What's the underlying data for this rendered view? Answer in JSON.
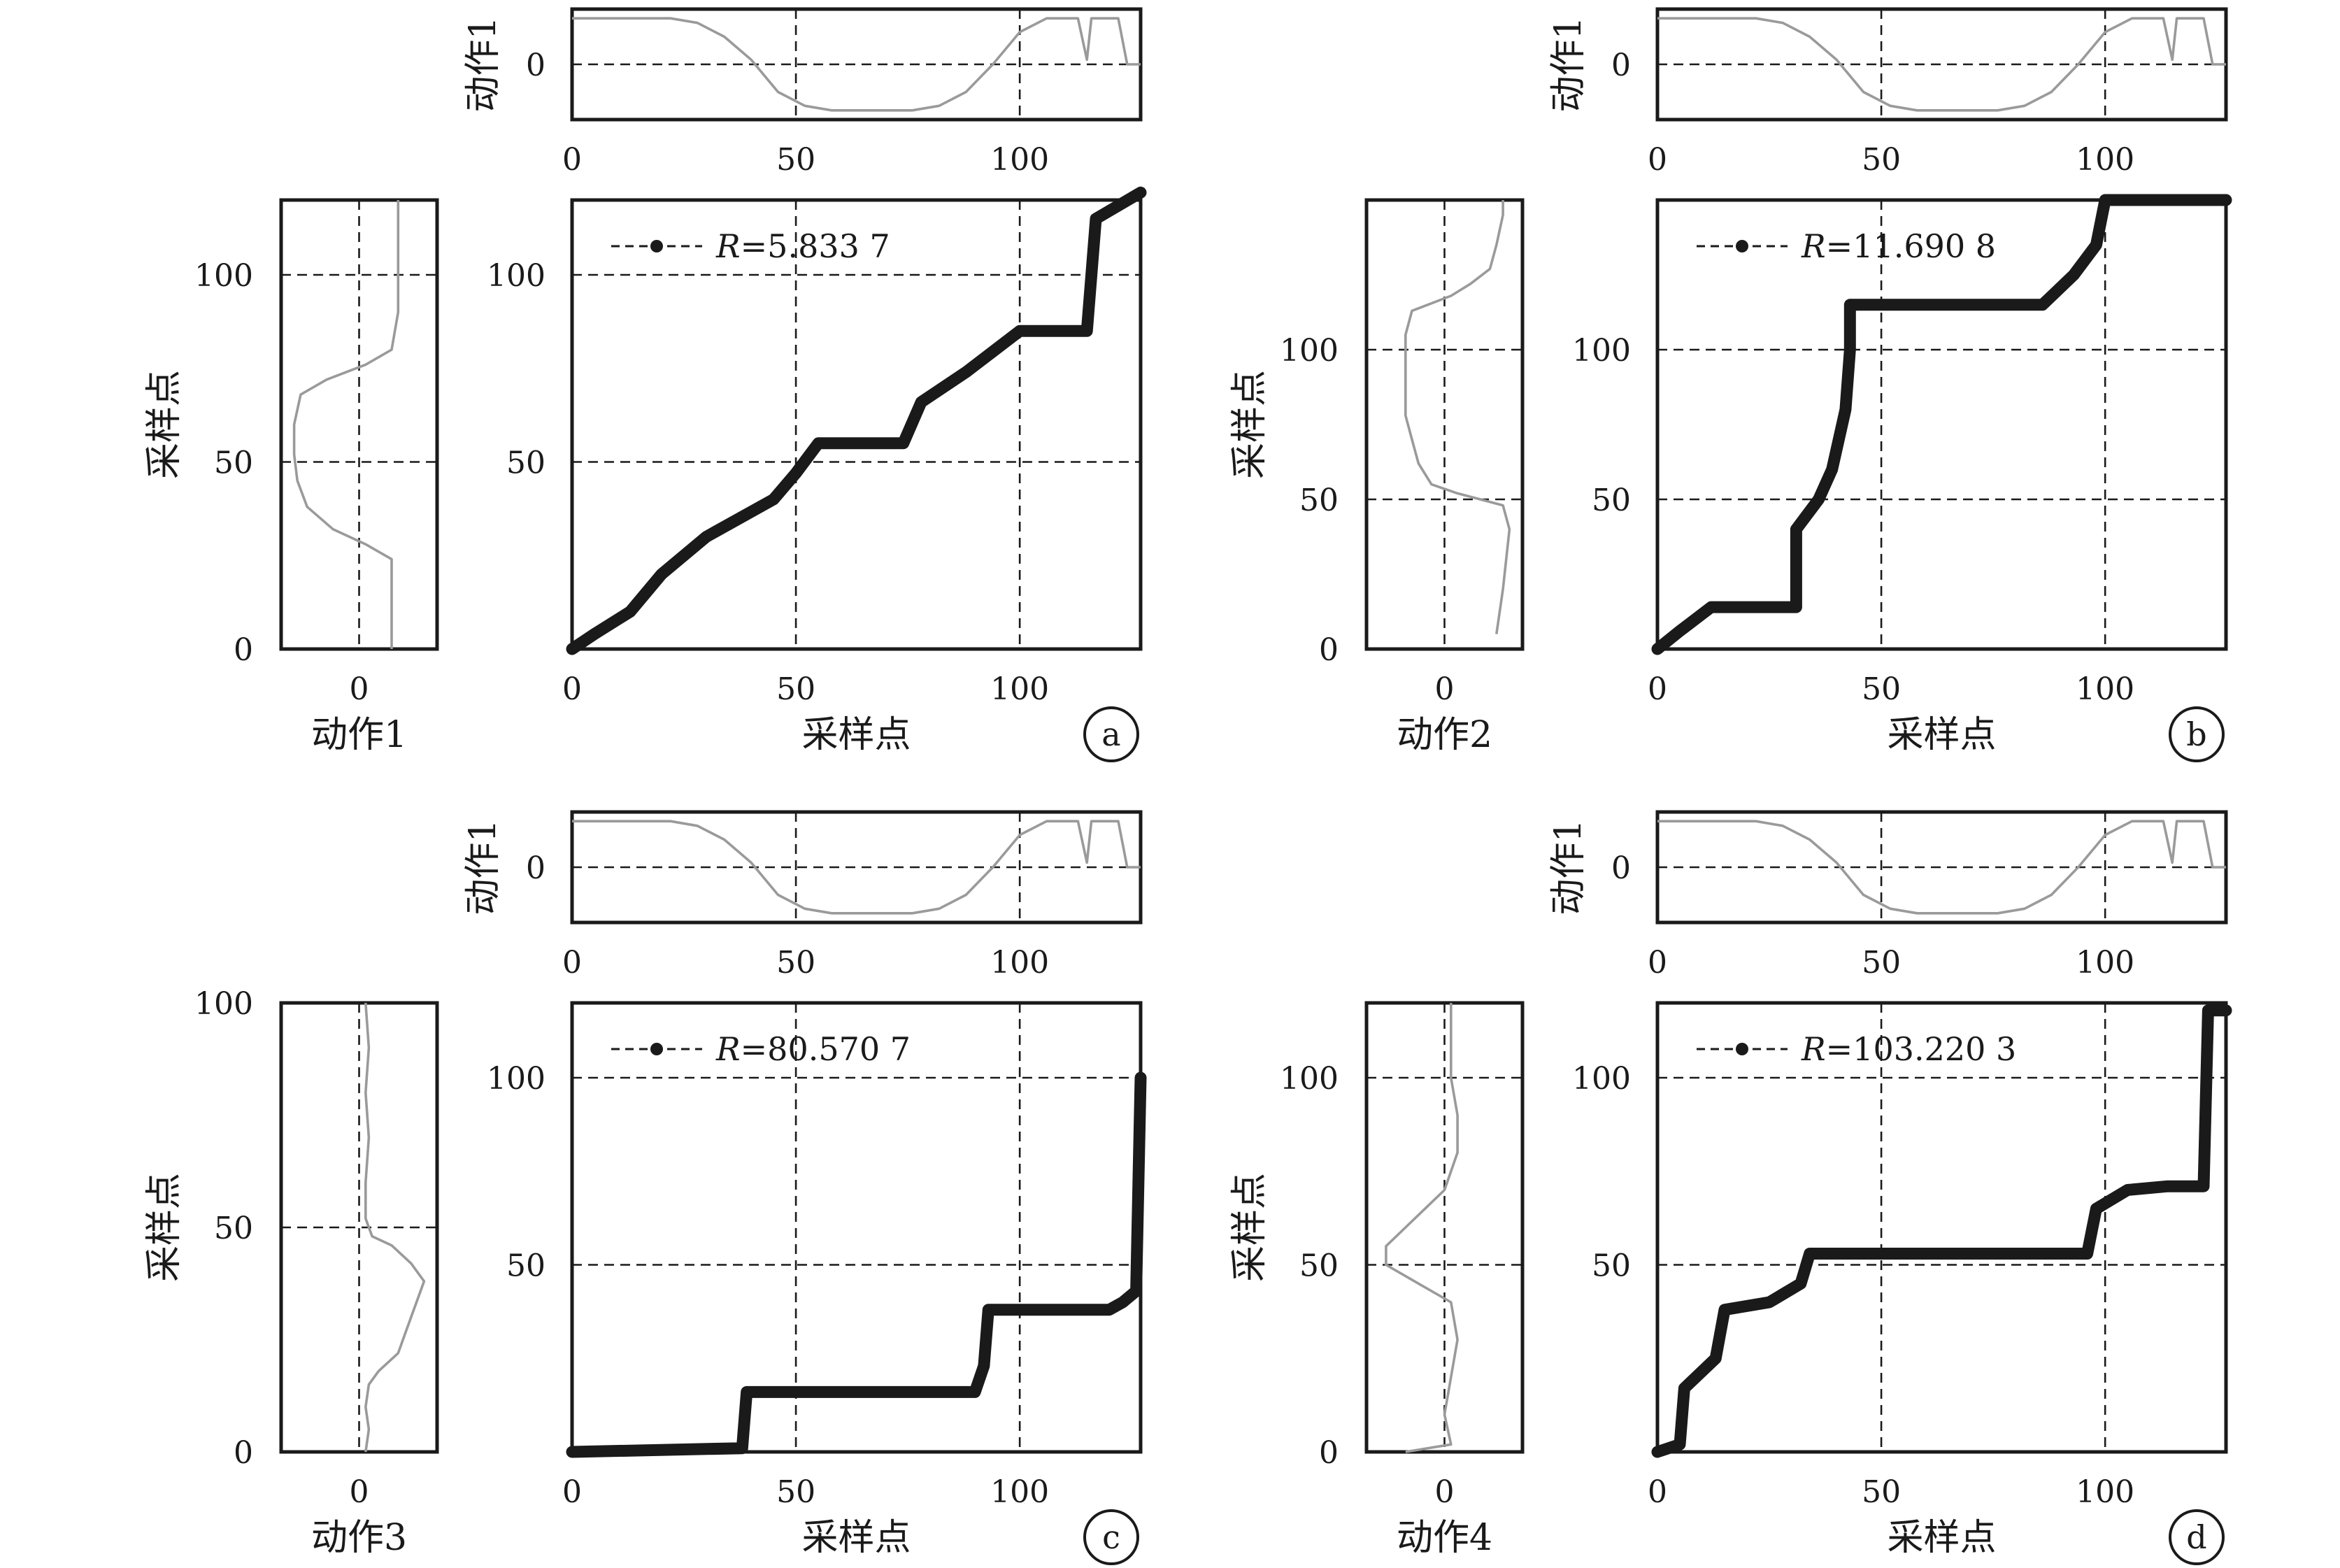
{
  "chart_data": [
    {
      "id": "a",
      "type": "line",
      "panel_label": "a",
      "xlabel": "采样点",
      "xlim": [
        0,
        127
      ],
      "ylim": [
        0,
        120
      ],
      "xticks": [
        0,
        50,
        100
      ],
      "yticks": [
        50,
        100
      ],
      "legend": "R=5.833 7",
      "legend_prefix": "R",
      "legend_value": "=5.833 7",
      "warping_path": {
        "x": [
          0,
          5,
          13,
          20,
          30,
          45,
          50,
          55,
          63,
          74,
          78,
          88,
          100,
          115,
          117,
          127
        ],
        "y": [
          0,
          4,
          10,
          20,
          30,
          40,
          47,
          55,
          55,
          55,
          66,
          74,
          85,
          85,
          115,
          122
        ]
      },
      "top_series": {
        "ylabel": "动作1",
        "xticks": [
          0,
          50,
          100
        ],
        "yticks": [
          0
        ],
        "xlim": [
          0,
          127
        ],
        "ylim": [
          -1.2,
          1.2
        ],
        "x": [
          0,
          22,
          28,
          34,
          40,
          46,
          52,
          58,
          64,
          70,
          76,
          82,
          88,
          94,
          100,
          106,
          113,
          115,
          116,
          122,
          124,
          127
        ],
        "y": [
          1,
          1,
          0.9,
          0.6,
          0.1,
          -0.6,
          -0.9,
          -1,
          -1,
          -1,
          -1,
          -0.9,
          -0.6,
          0.0,
          0.7,
          1,
          1,
          0.1,
          1,
          1,
          0,
          0
        ]
      },
      "left_series": {
        "xlabel": "动作1",
        "ylabel": "采样点",
        "xticks": [
          0
        ],
        "yticks": [
          0,
          50,
          100
        ],
        "xlim": [
          -1.2,
          1.2
        ],
        "ylim": [
          0,
          120
        ],
        "y": [
          0,
          24,
          28,
          32,
          38,
          45,
          52,
          60,
          68,
          72,
          76,
          80,
          90,
          100,
          120
        ],
        "x": [
          0.5,
          0.5,
          0.1,
          -0.4,
          -0.8,
          -0.95,
          -1.0,
          -1.0,
          -0.9,
          -0.5,
          0.1,
          0.5,
          0.6,
          0.6,
          0.6
        ]
      }
    },
    {
      "id": "b",
      "type": "line",
      "panel_label": "b",
      "xlabel": "采样点",
      "xlim": [
        0,
        127
      ],
      "ylim": [
        0,
        150
      ],
      "xticks": [
        0,
        50,
        100
      ],
      "yticks": [
        50,
        100
      ],
      "legend": "R=11.690 8",
      "legend_prefix": "R",
      "legend_value": "=11.690 8",
      "warping_path": {
        "x": [
          0,
          5,
          12,
          31,
          31,
          36,
          39,
          42,
          43,
          43,
          86,
          93,
          98,
          100,
          127
        ],
        "y": [
          0,
          6,
          14,
          14,
          40,
          50,
          60,
          80,
          100,
          115,
          115,
          125,
          135,
          150,
          150
        ]
      },
      "top_series": {
        "ylabel": "动作1",
        "xticks": [
          0,
          50,
          100
        ],
        "yticks": [
          0
        ],
        "xlim": [
          0,
          127
        ],
        "ylim": [
          -1.2,
          1.2
        ],
        "x": [
          0,
          22,
          28,
          34,
          40,
          46,
          52,
          58,
          64,
          70,
          76,
          82,
          88,
          94,
          100,
          106,
          113,
          115,
          116,
          122,
          124,
          127
        ],
        "y": [
          1,
          1,
          0.9,
          0.6,
          0.1,
          -0.6,
          -0.9,
          -1,
          -1,
          -1,
          -1,
          -0.9,
          -0.6,
          0.0,
          0.7,
          1,
          1,
          0.1,
          1,
          1,
          0,
          0
        ]
      },
      "left_series": {
        "xlabel": "动作2",
        "ylabel": "采样点",
        "xticks": [
          0
        ],
        "yticks": [
          0,
          50,
          100
        ],
        "xlim": [
          -1.2,
          1.2
        ],
        "ylim": [
          0,
          150
        ],
        "y": [
          5,
          20,
          40,
          48,
          52,
          55,
          62,
          70,
          78,
          86,
          95,
          105,
          113,
          118,
          122,
          127,
          135,
          145,
          150
        ],
        "x": [
          0.8,
          0.9,
          1.0,
          0.9,
          0.2,
          -0.2,
          -0.4,
          -0.5,
          -0.6,
          -0.6,
          -0.6,
          -0.6,
          -0.5,
          0.1,
          0.4,
          0.7,
          0.8,
          0.9,
          0.9
        ]
      }
    },
    {
      "id": "c",
      "type": "line",
      "panel_label": "c",
      "xlabel": "采样点",
      "xlim": [
        0,
        127
      ],
      "ylim": [
        0,
        120
      ],
      "xticks": [
        0,
        50,
        100
      ],
      "yticks": [
        50,
        100
      ],
      "legend": "R=80.570 7",
      "legend_prefix": "R",
      "legend_value": "=80.570 7",
      "warping_path": {
        "x": [
          0,
          38,
          39,
          90,
          92,
          93,
          120,
          123,
          126,
          127
        ],
        "y": [
          0,
          1,
          16,
          16,
          23,
          38,
          38,
          40,
          43,
          100
        ]
      },
      "top_series": {
        "ylabel": "动作1",
        "xticks": [
          0,
          50,
          100
        ],
        "yticks": [
          0
        ],
        "xlim": [
          0,
          127
        ],
        "ylim": [
          -1.2,
          1.2
        ],
        "x": [
          0,
          22,
          28,
          34,
          40,
          46,
          52,
          58,
          64,
          70,
          76,
          82,
          88,
          94,
          100,
          106,
          113,
          115,
          116,
          122,
          124,
          127
        ],
        "y": [
          1,
          1,
          0.9,
          0.6,
          0.1,
          -0.6,
          -0.9,
          -1,
          -1,
          -1,
          -1,
          -0.9,
          -0.6,
          0.0,
          0.7,
          1,
          1,
          0.1,
          1,
          1,
          0,
          0
        ]
      },
      "left_series": {
        "xlabel": "动作3",
        "ylabel": "采样点",
        "xticks": [
          0
        ],
        "yticks": [
          0,
          50,
          100
        ],
        "xlim": [
          -1.2,
          1.2
        ],
        "ylim": [
          0,
          100
        ],
        "y": [
          0,
          5,
          10,
          15,
          18,
          22,
          26,
          30,
          34,
          38,
          42,
          46,
          48,
          52,
          60,
          70,
          80,
          90,
          100
        ],
        "x": [
          0.1,
          0.15,
          0.1,
          0.15,
          0.3,
          0.6,
          0.7,
          0.8,
          0.9,
          1.0,
          0.8,
          0.5,
          0.2,
          0.1,
          0.1,
          0.15,
          0.1,
          0.15,
          0.1
        ]
      }
    },
    {
      "id": "d",
      "type": "line",
      "panel_label": "d",
      "xlabel": "采样点",
      "xlim": [
        0,
        127
      ],
      "ylim": [
        0,
        120
      ],
      "xticks": [
        0,
        50,
        100
      ],
      "yticks": [
        50,
        100
      ],
      "legend": "R=103.220 3",
      "legend_prefix": "R",
      "legend_value": "=103.220 3",
      "warping_path": {
        "x": [
          0,
          5,
          6,
          13,
          15,
          25,
          32,
          34,
          96,
          98,
          105,
          114,
          122,
          123,
          127
        ],
        "y": [
          0,
          2,
          17,
          25,
          38,
          40,
          45,
          53,
          53,
          65,
          70,
          71,
          71,
          118,
          118
        ]
      },
      "top_series": {
        "ylabel": "动作1",
        "xticks": [
          0,
          50,
          100
        ],
        "yticks": [
          0
        ],
        "xlim": [
          0,
          127
        ],
        "ylim": [
          -1.2,
          1.2
        ],
        "x": [
          0,
          22,
          28,
          34,
          40,
          46,
          52,
          58,
          64,
          70,
          76,
          82,
          88,
          94,
          100,
          106,
          113,
          115,
          116,
          122,
          124,
          127
        ],
        "y": [
          1,
          1,
          0.9,
          0.6,
          0.1,
          -0.6,
          -0.9,
          -1,
          -1,
          -1,
          -1,
          -0.9,
          -0.6,
          0.0,
          0.7,
          1,
          1,
          0.1,
          1,
          1,
          0,
          0
        ]
      },
      "left_series": {
        "xlabel": "动作4",
        "ylabel": "采样点",
        "xticks": [
          0
        ],
        "yticks": [
          0,
          50,
          100
        ],
        "xlim": [
          -1.2,
          1.2
        ],
        "ylim": [
          0,
          120
        ],
        "y": [
          0,
          2,
          10,
          20,
          30,
          40,
          45,
          50,
          55,
          60,
          65,
          70,
          80,
          90,
          100,
          110,
          120
        ],
        "x": [
          -0.6,
          0.1,
          0.0,
          0.1,
          0.2,
          0.1,
          -0.4,
          -0.9,
          -0.9,
          -0.6,
          -0.3,
          0.0,
          0.2,
          0.2,
          0.1,
          0.1,
          0.1
        ]
      }
    }
  ],
  "colors": {
    "axis": "#1a1a1a",
    "path": "#1a1a1a",
    "series": "#9a9a9a"
  }
}
